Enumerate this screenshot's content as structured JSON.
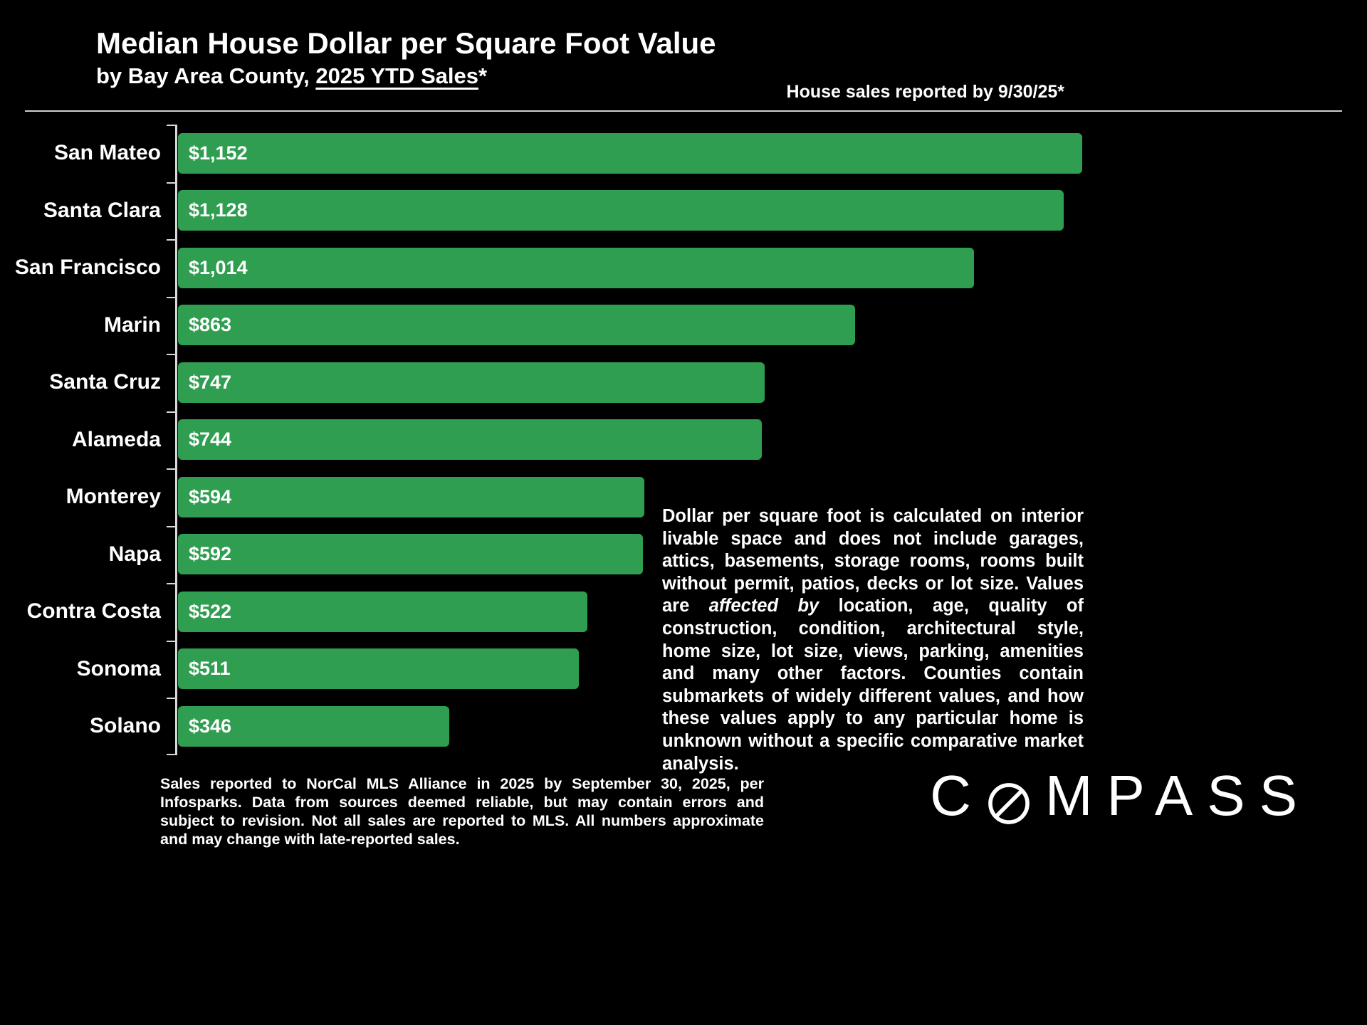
{
  "header": {
    "title": "Median House Dollar per Square Foot Value",
    "subtitle_prefix": "by Bay Area County, ",
    "subtitle_underlined": "2025 YTD Sales",
    "subtitle_suffix": "*",
    "report_note": "House sales reported by 9/30/25*"
  },
  "chart_data": {
    "type": "bar",
    "orientation": "horizontal",
    "title": "Median House Dollar per Square Foot Value by Bay Area County, 2025 YTD Sales",
    "categories": [
      "San Mateo",
      "Santa Clara",
      "San Francisco",
      "Marin",
      "Santa Cruz",
      "Alameda",
      "Monterey",
      "Napa",
      "Contra Costa",
      "Sonoma",
      "Solano"
    ],
    "values": [
      1152,
      1128,
      1014,
      863,
      747,
      744,
      594,
      592,
      522,
      511,
      346
    ],
    "value_labels": [
      "$1,152",
      "$1,128",
      "$1,014",
      "$863",
      "$747",
      "$744",
      "$594",
      "$592",
      "$522",
      "$511",
      "$346"
    ],
    "xlim": [
      0,
      1152
    ],
    "bar_color": "#2f9e50",
    "grid": false,
    "legend": false
  },
  "annotation": {
    "pre": "Dollar per square foot is calculated on interior livable space and does not include garages, attics, basements, storage rooms, rooms built without permit, patios, decks or lot size. Values are ",
    "emphasis": "affected by",
    "post": " location, age, quality of construction, condition, architectural style, home size, lot size, views, parking, amenities and many other factors. Counties contain submarkets of widely different values, and how these values apply to any particular home is unknown without a specific comparative market analysis."
  },
  "footnote": "Sales reported to NorCal MLS Alliance in 2025 by September 30, 2025, per Infosparks. Data from sources deemed reliable, but may contain errors and subject to revision. Not all sales are reported to MLS. All numbers approximate and may change with late-reported sales.",
  "logo": {
    "brand": "COMPASS",
    "pre": "C",
    "post": "MPASS",
    "icon": "compass-o-icon"
  }
}
